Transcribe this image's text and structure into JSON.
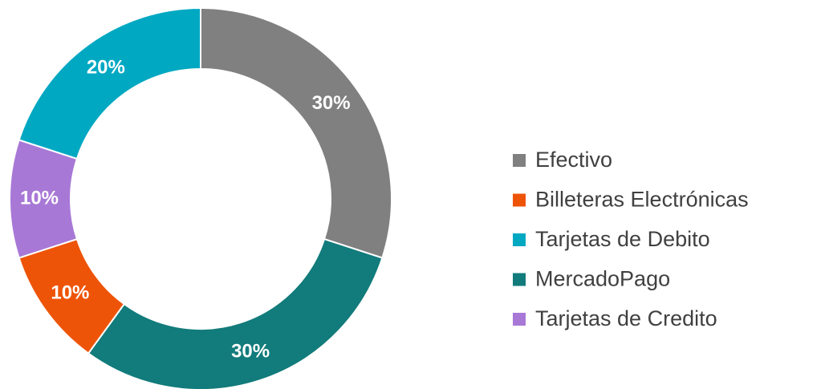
{
  "chart_data": {
    "type": "donut",
    "categories": [
      "Efectivo",
      "MercadoPago",
      "Billeteras Electrónicas",
      "Tarjetas de Credito",
      "Tarjetas de Debito"
    ],
    "values": [
      30,
      30,
      10,
      10,
      20
    ],
    "value_labels": [
      "30%",
      "30%",
      "10%",
      "10%",
      "20%"
    ],
    "colors": [
      "#808080",
      "#127b7b",
      "#ee5408",
      "#a878d6",
      "#00a8c2"
    ],
    "legend": [
      "Efectivo",
      "Billeteras Electrónicas",
      "Tarjetas de Debito",
      "MercadoPago",
      "Tarjetas de Credito"
    ]
  }
}
